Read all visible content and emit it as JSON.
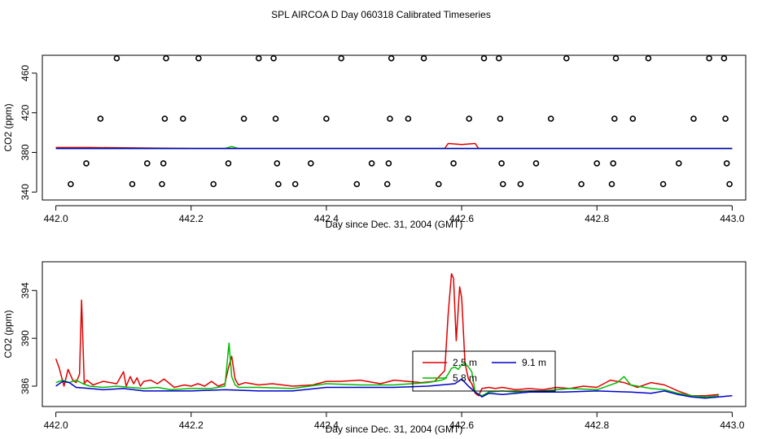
{
  "figure": {
    "title": "SPL AIRCOA D  Day 060318  Calibrated Timeseries"
  },
  "colors": {
    "s25": "#e00000",
    "s58": "#00bb00",
    "s91": "#0000cc",
    "axis": "#000000"
  },
  "chart_data": [
    {
      "type": "scatter",
      "xlabel": "Day since Dec. 31, 2004 (GMT)",
      "ylabel": "CO2 (ppm)",
      "xlim": [
        441.98,
        443.02
      ],
      "ylim": [
        332,
        478
      ],
      "xticks": [
        442.0,
        442.2,
        442.4,
        442.6,
        442.8,
        443.0
      ],
      "xtick_labels": [
        "442.0",
        "442.2",
        "442.4",
        "442.6",
        "442.8",
        "443.0"
      ],
      "yticks": [
        340,
        380,
        420,
        460
      ],
      "ytick_labels": [
        "340",
        "380",
        "420",
        "460"
      ],
      "points": [
        [
          442.022,
          348
        ],
        [
          442.045,
          369
        ],
        [
          442.066,
          414
        ],
        [
          442.09,
          475
        ],
        [
          442.113,
          348
        ],
        [
          442.135,
          369
        ],
        [
          442.157,
          348
        ],
        [
          442.159,
          369
        ],
        [
          442.161,
          414
        ],
        [
          442.163,
          475
        ],
        [
          442.188,
          414
        ],
        [
          442.211,
          475
        ],
        [
          442.233,
          348
        ],
        [
          442.255,
          369
        ],
        [
          442.278,
          414
        ],
        [
          442.3,
          475
        ],
        [
          442.322,
          475
        ],
        [
          442.325,
          414
        ],
        [
          442.327,
          369
        ],
        [
          442.329,
          348
        ],
        [
          442.354,
          348
        ],
        [
          442.377,
          369
        ],
        [
          442.4,
          414
        ],
        [
          442.422,
          475
        ],
        [
          442.445,
          348
        ],
        [
          442.467,
          369
        ],
        [
          442.49,
          348
        ],
        [
          442.492,
          369
        ],
        [
          442.494,
          414
        ],
        [
          442.496,
          475
        ],
        [
          442.521,
          414
        ],
        [
          442.544,
          475
        ],
        [
          442.566,
          348
        ],
        [
          442.588,
          369
        ],
        [
          442.611,
          414
        ],
        [
          442.633,
          475
        ],
        [
          442.655,
          475
        ],
        [
          442.657,
          414
        ],
        [
          442.659,
          369
        ],
        [
          442.661,
          348
        ],
        [
          442.687,
          348
        ],
        [
          442.71,
          369
        ],
        [
          442.732,
          414
        ],
        [
          442.755,
          475
        ],
        [
          442.777,
          348
        ],
        [
          442.8,
          369
        ],
        [
          442.822,
          348
        ],
        [
          442.824,
          369
        ],
        [
          442.826,
          414
        ],
        [
          442.828,
          475
        ],
        [
          442.853,
          414
        ],
        [
          442.876,
          475
        ],
        [
          442.898,
          348
        ],
        [
          442.921,
          369
        ],
        [
          442.943,
          414
        ],
        [
          442.966,
          475
        ],
        [
          442.988,
          475
        ],
        [
          442.99,
          414
        ],
        [
          442.992,
          369
        ],
        [
          442.996,
          348
        ]
      ],
      "series": [
        {
          "name": "2.5 m",
          "color": "#e00000",
          "x": [
            442.0,
            442.04,
            442.05,
            442.2,
            442.4,
            442.55,
            442.575,
            442.58,
            442.6,
            442.62,
            442.625,
            443.0
          ],
          "values": [
            385,
            385,
            385,
            384,
            384,
            384,
            384,
            389,
            388,
            389,
            384,
            384
          ]
        },
        {
          "name": "5.8 m",
          "color": "#00bb00",
          "x": [
            442.0,
            442.25,
            442.26,
            442.27,
            443.0
          ],
          "values": [
            384,
            384,
            386,
            384,
            384
          ]
        },
        {
          "name": "9.1 m",
          "color": "#0000cc",
          "x": [
            442.0,
            443.0
          ],
          "values": [
            384,
            384
          ]
        }
      ]
    },
    {
      "type": "line",
      "xlabel": "Day since Dec. 31, 2004 (GMT)",
      "ylabel": "CO2 (ppm)",
      "xlim": [
        441.98,
        443.02
      ],
      "ylim": [
        384.3,
        396.4
      ],
      "xticks": [
        442.0,
        442.2,
        442.4,
        442.6,
        442.8,
        443.0
      ],
      "xtick_labels": [
        "442.0",
        "442.2",
        "442.4",
        "442.6",
        "442.8",
        "443.0"
      ],
      "yticks": [
        386,
        390,
        394
      ],
      "ytick_labels": [
        "386",
        "390",
        "394"
      ],
      "legend": {
        "position": "center",
        "entries": [
          "2.5 m",
          "5.8 m",
          "9.1 m"
        ]
      },
      "series": [
        {
          "name": "2.5 m",
          "color": "#e00000",
          "x": [
            442.0,
            442.005,
            442.012,
            442.018,
            442.025,
            442.03,
            442.035,
            442.038,
            442.042,
            442.046,
            442.055,
            442.07,
            442.09,
            442.1,
            442.104,
            442.11,
            442.115,
            442.12,
            442.125,
            442.13,
            442.14,
            442.15,
            442.16,
            442.175,
            442.19,
            442.2,
            442.21,
            442.22,
            442.23,
            442.24,
            442.25,
            442.255,
            442.26,
            442.265,
            442.27,
            442.28,
            442.3,
            442.32,
            442.35,
            442.38,
            442.4,
            442.42,
            442.45,
            442.48,
            442.5,
            442.52,
            442.54,
            442.56,
            442.575,
            442.58,
            442.585,
            442.588,
            442.592,
            442.597,
            442.6,
            442.605,
            442.61,
            442.615,
            442.62,
            442.625,
            442.63,
            442.64,
            442.65,
            442.66,
            442.68,
            442.7,
            442.72,
            442.74,
            442.76,
            442.78,
            442.8,
            442.82,
            442.84,
            442.86,
            442.88,
            442.9,
            442.92,
            442.94,
            442.96,
            442.98
          ],
          "values": [
            388.3,
            387.5,
            386.0,
            387.4,
            386.5,
            386.3,
            387.0,
            393.2,
            386.2,
            386.5,
            386.1,
            386.4,
            386.2,
            387.2,
            386.0,
            386.8,
            386.2,
            386.7,
            386.0,
            386.4,
            386.5,
            386.2,
            386.6,
            385.9,
            386.1,
            386.0,
            386.2,
            386.0,
            386.4,
            386.0,
            386.2,
            387.5,
            388.5,
            386.6,
            386.1,
            386.3,
            386.1,
            386.2,
            386.0,
            386.1,
            386.4,
            386.4,
            386.5,
            386.2,
            386.5,
            386.4,
            386.3,
            386.4,
            387.3,
            392.0,
            395.4,
            395.0,
            389.8,
            394.3,
            393.4,
            387.9,
            386.6,
            386.2,
            385.4,
            385.2,
            385.8,
            385.9,
            385.8,
            385.9,
            385.7,
            385.8,
            385.7,
            385.9,
            385.8,
            386.0,
            385.9,
            386.5,
            386.3,
            385.9,
            386.3,
            386.1,
            385.6,
            385.2,
            385.2,
            385.3
          ]
        },
        {
          "name": "5.8 m",
          "color": "#00bb00",
          "x": [
            442.0,
            442.01,
            442.02,
            442.03,
            442.04,
            442.05,
            442.07,
            442.09,
            442.11,
            442.13,
            442.15,
            442.17,
            442.2,
            442.23,
            442.25,
            442.256,
            442.26,
            442.265,
            442.27,
            442.3,
            442.35,
            442.4,
            442.45,
            442.5,
            442.55,
            442.57,
            442.575,
            442.58,
            442.585,
            442.59,
            442.595,
            442.6,
            442.605,
            442.61,
            442.615,
            442.62,
            442.63,
            442.64,
            442.66,
            442.68,
            442.7,
            442.72,
            442.74,
            442.76,
            442.8,
            442.83,
            442.84,
            442.85,
            442.88,
            442.9,
            442.92,
            442.94,
            442.96,
            442.98
          ],
          "values": [
            386.3,
            386.5,
            386.3,
            386.5,
            386.2,
            386.0,
            385.9,
            386.0,
            385.9,
            385.8,
            385.9,
            385.7,
            385.8,
            385.8,
            386.0,
            389.6,
            386.8,
            386.1,
            385.9,
            385.9,
            385.8,
            386.2,
            386.1,
            386.1,
            386.3,
            386.5,
            386.6,
            387.0,
            387.5,
            387.6,
            387.4,
            387.8,
            387.9,
            387.6,
            387.2,
            385.5,
            385.2,
            385.5,
            385.6,
            385.5,
            385.6,
            385.6,
            385.7,
            385.8,
            385.7,
            386.3,
            386.8,
            386.1,
            385.8,
            385.7,
            385.4,
            385.2,
            385.1,
            385.2
          ]
        },
        {
          "name": "9.1 m",
          "color": "#0000cc",
          "x": [
            442.0,
            442.01,
            442.02,
            442.03,
            442.05,
            442.07,
            442.1,
            442.13,
            442.16,
            442.2,
            442.25,
            442.3,
            442.35,
            442.4,
            442.45,
            442.5,
            442.55,
            442.57,
            442.59,
            442.6,
            442.61,
            442.62,
            442.63,
            442.64,
            442.66,
            442.7,
            442.75,
            442.8,
            442.85,
            442.88,
            442.9,
            442.92,
            442.94,
            442.96,
            442.98,
            443.0
          ],
          "values": [
            386.0,
            386.4,
            386.3,
            385.9,
            385.8,
            385.7,
            385.8,
            385.6,
            385.6,
            385.6,
            385.7,
            385.6,
            385.6,
            385.9,
            385.9,
            385.9,
            386.0,
            386.1,
            386.2,
            386.6,
            386.0,
            385.5,
            385.1,
            385.4,
            385.3,
            385.5,
            385.5,
            385.6,
            385.5,
            385.4,
            385.6,
            385.3,
            385.1,
            385.0,
            385.1,
            385.2
          ]
        }
      ]
    }
  ]
}
